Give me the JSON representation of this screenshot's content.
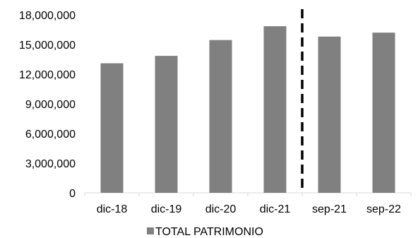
{
  "chart_data": {
    "type": "bar",
    "categories": [
      "dic-18",
      "dic-19",
      "dic-20",
      "dic-21",
      "sep-21",
      "sep-22"
    ],
    "series": [
      {
        "name": "TOTAL PATRIMONIO",
        "values": [
          13100000,
          13850000,
          15450000,
          16850000,
          15800000,
          16200000
        ],
        "color": "#808080"
      }
    ],
    "yticks": [
      "0",
      "3,000,000",
      "6,000,000",
      "9,000,000",
      "12,000,000",
      "15,000,000",
      "18,000,000"
    ],
    "ylim": [
      0,
      18000000
    ],
    "grid": false,
    "legend": "bottom",
    "annotations": [
      {
        "kind": "dashed-vertical-line",
        "between": [
          "dic-21",
          "sep-21"
        ],
        "color": "#000000"
      }
    ]
  }
}
